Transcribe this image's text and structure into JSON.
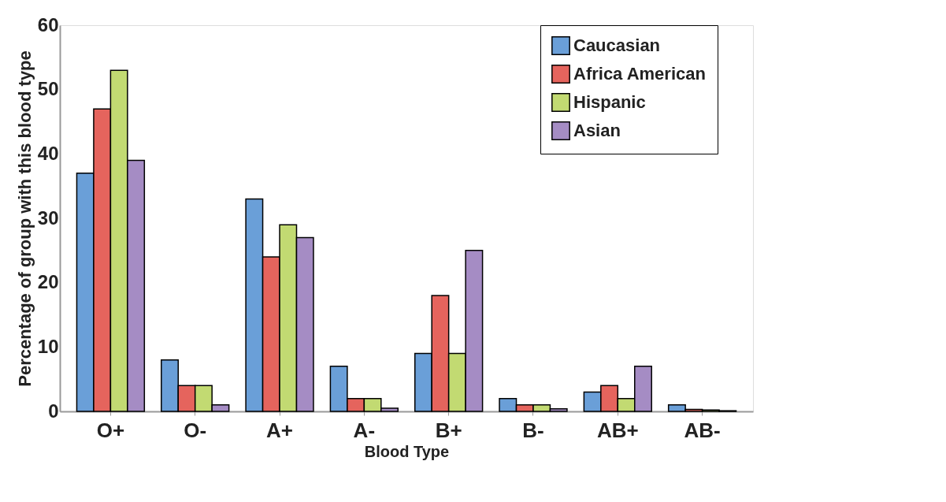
{
  "chart_data": {
    "type": "bar",
    "xlabel": "Blood Type",
    "ylabel": "Percentage of group with this blood type",
    "categories": [
      "O+",
      "O-",
      "A+",
      "A-",
      "B+",
      "B-",
      "AB+",
      "AB-"
    ],
    "series": [
      {
        "name": "Caucasian",
        "color": "#6a9fd8",
        "values": [
          37,
          8,
          33,
          7,
          9,
          2,
          3,
          1
        ]
      },
      {
        "name": "Africa American",
        "color": "#e5645d",
        "values": [
          47,
          4,
          24,
          2,
          18,
          1,
          4,
          0.3
        ]
      },
      {
        "name": "Hispanic",
        "color": "#c2da72",
        "values": [
          53,
          4,
          29,
          2,
          9,
          1,
          2,
          0.2
        ]
      },
      {
        "name": "Asian",
        "color": "#a58cc4",
        "values": [
          39,
          1,
          27,
          0.5,
          25,
          0.4,
          7,
          0.1
        ]
      }
    ],
    "ylim": [
      0,
      60
    ],
    "yticks": [
      0,
      10,
      20,
      30,
      40,
      50,
      60
    ],
    "grid": false,
    "legend": "right"
  }
}
